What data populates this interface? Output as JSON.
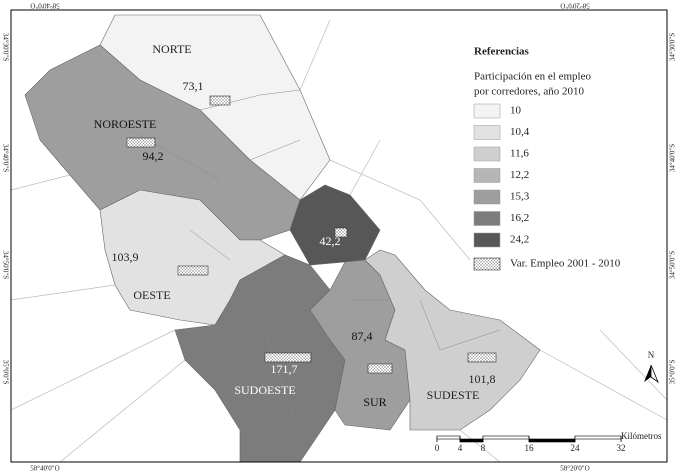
{
  "coordinates": {
    "top": [
      "58°40'0\"O",
      "58°20'0\"O"
    ],
    "bottom": [
      "58°40'0\"O",
      "58°20'0\"O"
    ],
    "left": [
      "34°30'0\"S",
      "34°40'0\"S",
      "34°50'0\"S",
      "35°0'0\"S"
    ],
    "right": [
      "34°30'0\"S",
      "34°40'0\"S",
      "34°50'0\"S",
      "35°0'0\"S"
    ]
  },
  "regions": [
    {
      "name": "NORTE",
      "variation": "73,1"
    },
    {
      "name": "NOROESTE",
      "variation": "94,2"
    },
    {
      "variation": "42,2"
    },
    {
      "name": "OESTE",
      "variation": "103,9"
    },
    {
      "name": "SUDOESTE",
      "variation": "171,7"
    },
    {
      "name": "SUR",
      "variation": "87,4"
    },
    {
      "name": "SUDESTE",
      "variation": "101,8"
    }
  ],
  "legend": {
    "title": "Referencias",
    "subtitle": [
      "Participación en el empleo",
      "por corredores, año 2010"
    ],
    "classes": [
      "10",
      "10,4",
      "11,6",
      "12,2",
      "15,3",
      "16,2",
      "24,2"
    ],
    "colors": [
      "#f3f3f3",
      "#e2e2e2",
      "#cfcfcf",
      "#b6b6b6",
      "#9e9e9e",
      "#7c7c7c",
      "#575757"
    ],
    "pattern_label": "Var. Empleo 2001 - 2010"
  },
  "scale": {
    "ticks": [
      0,
      4,
      8,
      16,
      24,
      32
    ],
    "unit": "Kilómetros"
  },
  "north": "N"
}
